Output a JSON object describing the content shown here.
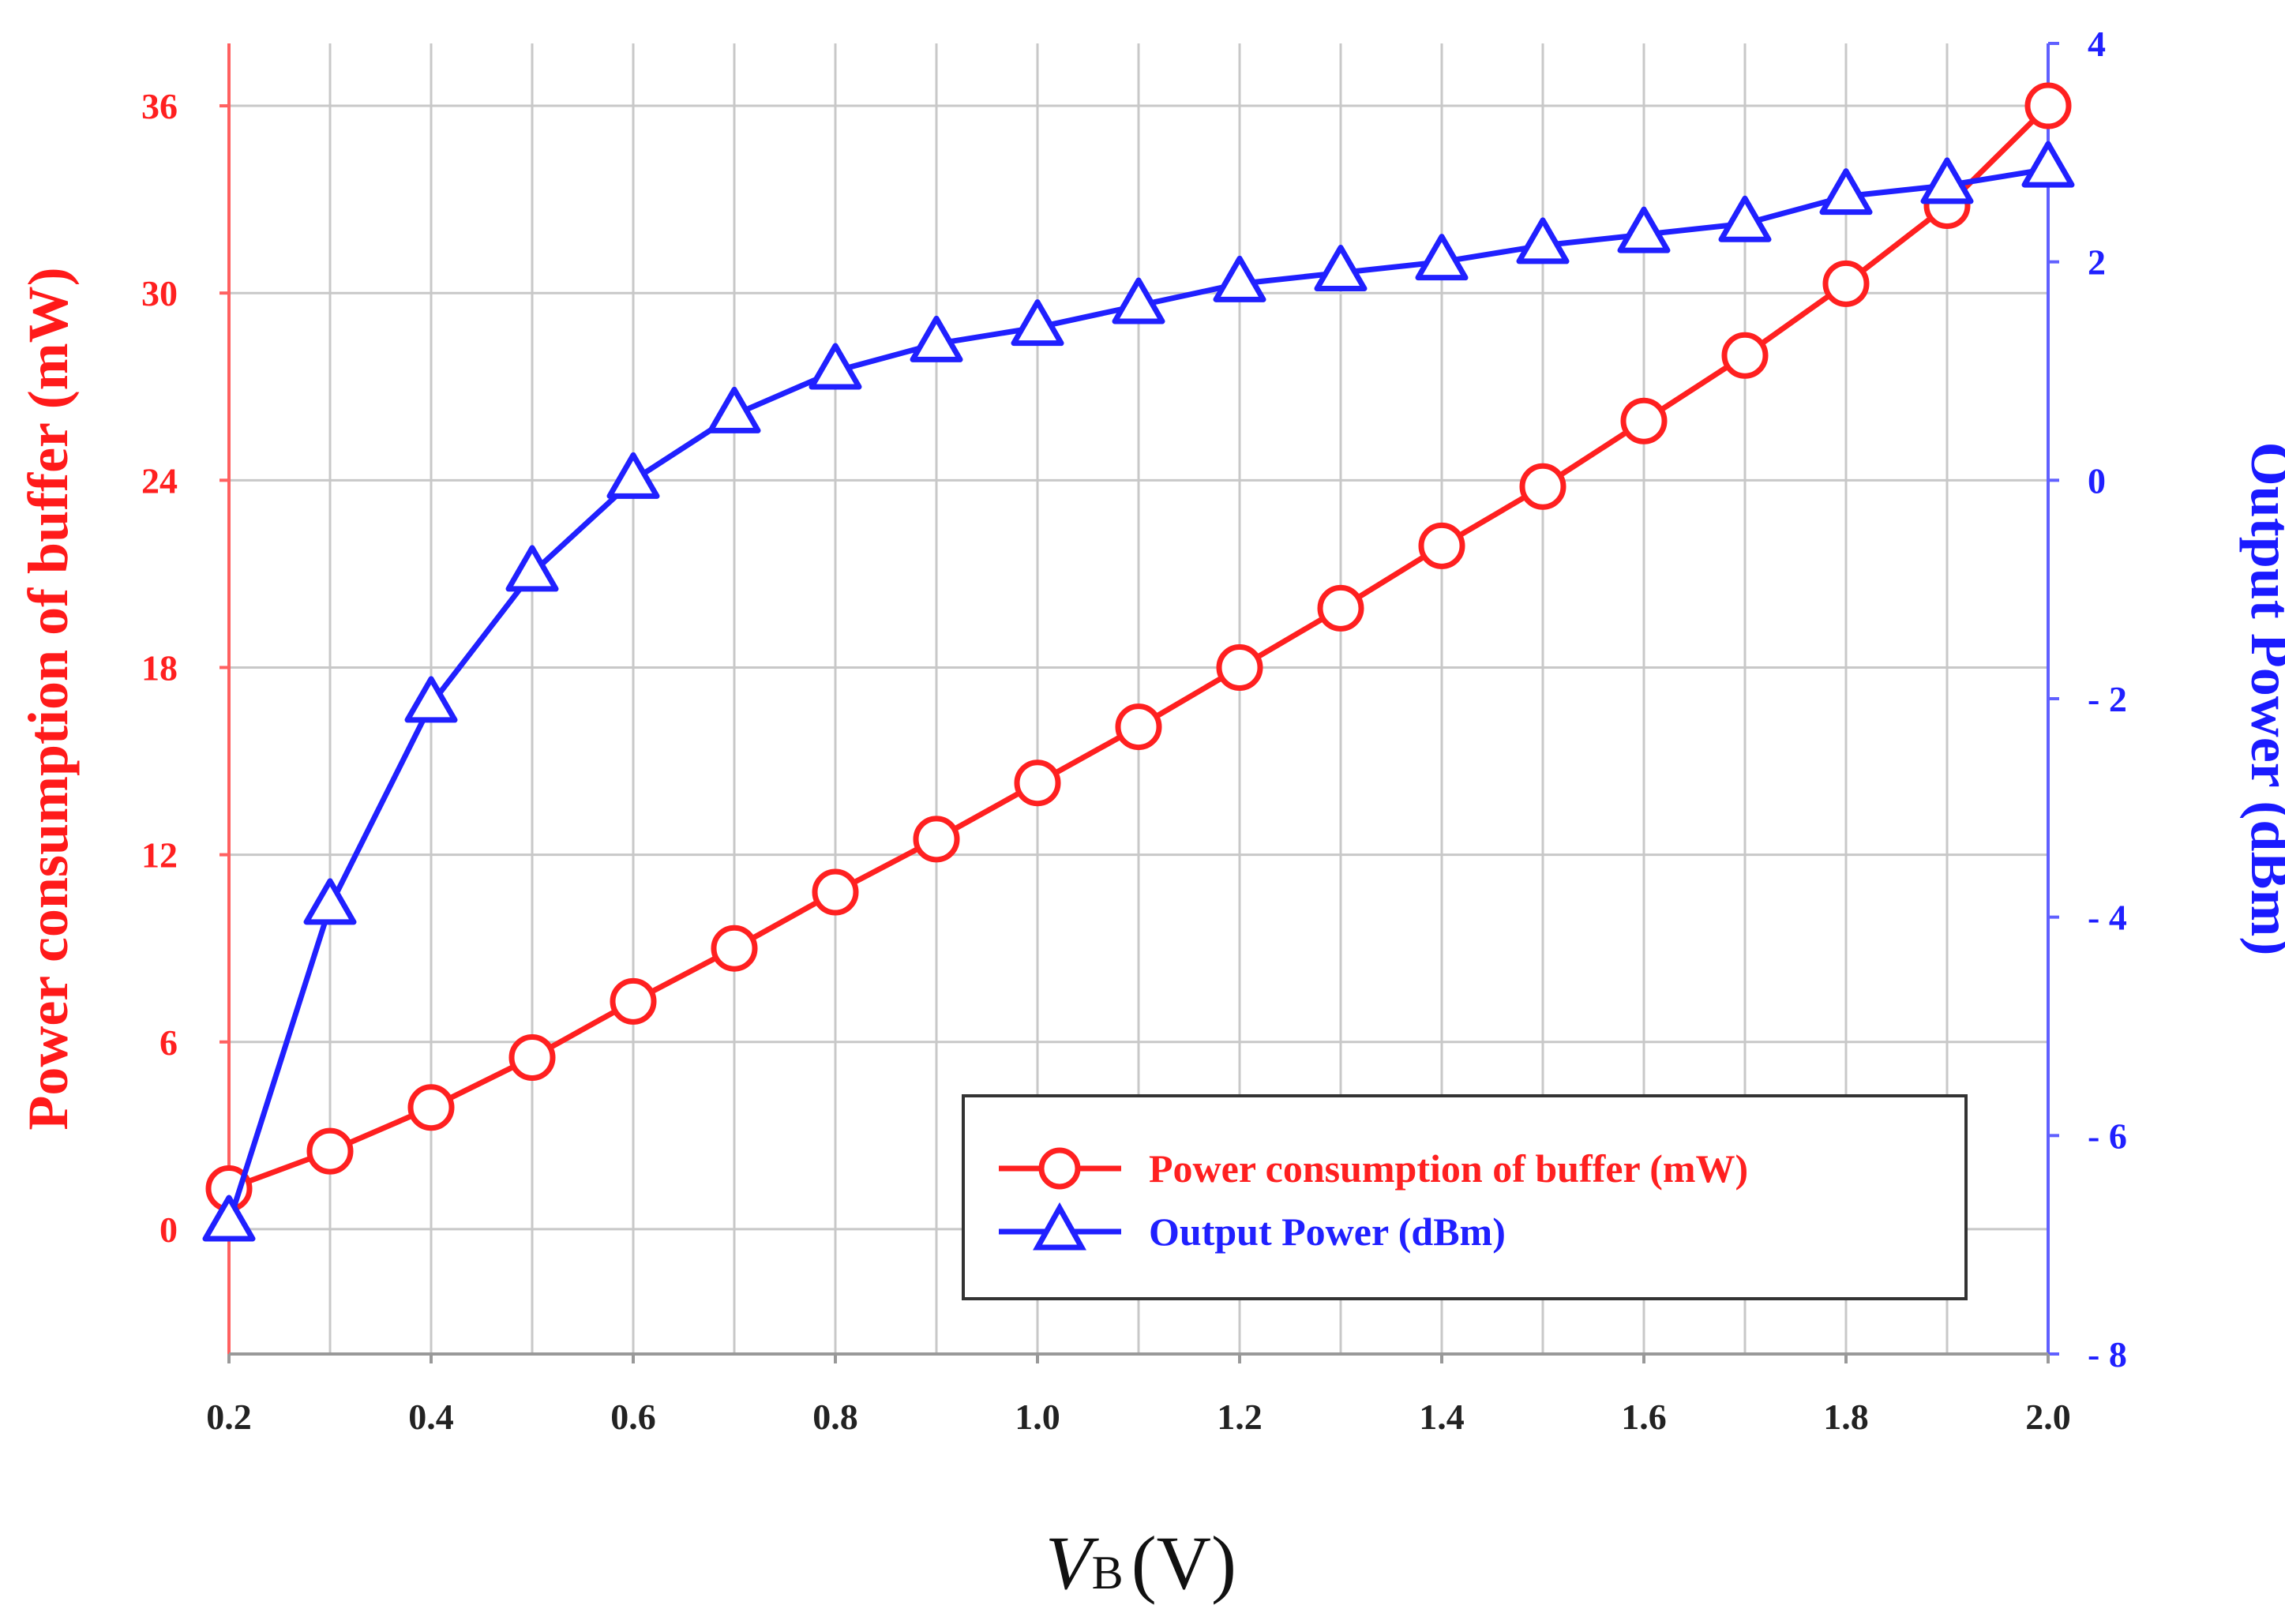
{
  "chart_data": {
    "type": "line",
    "title": "",
    "xlabel": "V_B (V)",
    "xlabel_parts": {
      "var": "V",
      "sub": "B",
      "unit": "(V)"
    },
    "x": [
      0.2,
      0.3,
      0.4,
      0.5,
      0.6,
      0.7,
      0.8,
      0.9,
      1.0,
      1.1,
      1.2,
      1.3,
      1.4,
      1.5,
      1.6,
      1.7,
      1.8,
      1.9,
      2.0
    ],
    "xlim": [
      0.2,
      2.0
    ],
    "xticks": [
      "0.2",
      "0.4",
      "0.6",
      "0.8",
      "1.0",
      "1.2",
      "1.4",
      "1.6",
      "1.8",
      "2.0"
    ],
    "ylabel_left": "Power consumption of buffer (mW)",
    "ylim_left": [
      -4,
      38
    ],
    "yticks_left": [
      "0",
      "6",
      "12",
      "18",
      "24",
      "30",
      "36"
    ],
    "ylabel_right": "Output Power (dBm)",
    "ylim_right": [
      -8,
      4
    ],
    "yticks_right": [
      "4",
      "2",
      "0",
      "- 2",
      "- 4",
      "- 6",
      "- 8"
    ],
    "grid": true,
    "legend_position": "bottom-right",
    "series": [
      {
        "name": "Power consumption of buffer (mW)",
        "axis": "left",
        "marker": "circle",
        "color": "#ff2020",
        "values": [
          1.3,
          2.5,
          3.9,
          5.5,
          7.3,
          9.0,
          10.8,
          12.5,
          14.3,
          16.1,
          18.0,
          19.9,
          21.9,
          23.8,
          25.9,
          28.0,
          30.3,
          32.8,
          36.0
        ]
      },
      {
        "name": "Output Power (dBm)",
        "axis": "right",
        "marker": "triangle",
        "color": "#2020ff",
        "values": [
          -6.8,
          -3.9,
          -2.05,
          -0.85,
          0.0,
          0.6,
          1.0,
          1.25,
          1.4,
          1.6,
          1.8,
          1.9,
          2.0,
          2.15,
          2.25,
          2.35,
          2.6,
          2.7,
          2.85
        ]
      }
    ]
  }
}
